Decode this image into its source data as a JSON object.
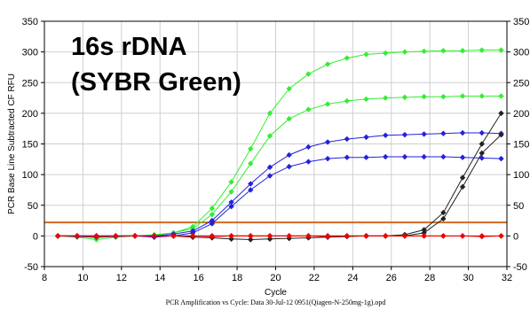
{
  "chart_data": {
    "type": "line",
    "title_lines": [
      "16s rDNA",
      "(SYBR Green)"
    ],
    "xlabel": "Cycle",
    "ylabel": "PCR Base Line Subtracted CF RFU",
    "footer": "PCR Amplification vs Cycle: Data 30-Jul-12 0951(Qiagen-N-250mg-1g).opd",
    "xlim": [
      8,
      32
    ],
    "ylim": [
      -50,
      350
    ],
    "x_ticks": [
      "8",
      "10",
      "12",
      "14",
      "16",
      "18",
      "20",
      "22",
      "24",
      "26",
      "28",
      "30",
      "32"
    ],
    "y_ticks": [
      "-50",
      "0",
      "50",
      "100",
      "150",
      "200",
      "250",
      "300",
      "350"
    ],
    "grid": true,
    "legend": "none",
    "threshold": {
      "y": 22,
      "color": "#d2691e"
    },
    "series": [
      {
        "color": "#33ee33",
        "x": [
          8.7,
          9.7,
          10.7,
          11.7,
          12.7,
          13.7,
          14.7,
          15.7,
          16.7,
          17.7,
          18.7,
          19.7,
          20.7,
          21.7,
          22.7,
          23.7,
          24.7,
          25.7,
          26.7,
          27.7,
          28.7,
          29.7,
          30.7,
          31.7
        ],
        "y": [
          0,
          0,
          -3,
          0,
          0,
          2,
          5,
          15,
          45,
          88,
          142,
          200,
          240,
          264,
          280,
          290,
          296,
          298,
          300,
          301,
          302,
          302,
          303,
          303
        ]
      },
      {
        "color": "#33ee33",
        "x": [
          8.7,
          9.7,
          10.7,
          11.7,
          12.7,
          13.7,
          14.7,
          15.7,
          16.7,
          17.7,
          18.7,
          19.7,
          20.7,
          21.7,
          22.7,
          23.7,
          24.7,
          25.7,
          26.7,
          27.7,
          28.7,
          29.7,
          30.7,
          31.7
        ],
        "y": [
          0,
          -2,
          -6,
          -2,
          0,
          1,
          5,
          12,
          35,
          72,
          118,
          163,
          191,
          206,
          215,
          220,
          223,
          225,
          226,
          227,
          227,
          228,
          228,
          228
        ]
      },
      {
        "color": "#2222dd",
        "x": [
          8.7,
          9.7,
          10.7,
          11.7,
          12.7,
          13.7,
          14.7,
          15.7,
          16.7,
          17.7,
          18.7,
          19.7,
          20.7,
          21.7,
          22.7,
          23.7,
          24.7,
          25.7,
          26.7,
          27.7,
          28.7,
          29.7,
          30.7,
          31.7
        ],
        "y": [
          0,
          0,
          0,
          0,
          0,
          0,
          3,
          8,
          25,
          55,
          85,
          112,
          132,
          145,
          153,
          158,
          161,
          164,
          165,
          166,
          167,
          168,
          168,
          167
        ]
      },
      {
        "color": "#2222dd",
        "x": [
          8.7,
          9.7,
          10.7,
          11.7,
          12.7,
          13.7,
          14.7,
          15.7,
          16.7,
          17.7,
          18.7,
          19.7,
          20.7,
          21.7,
          22.7,
          23.7,
          24.7,
          25.7,
          26.7,
          27.7,
          28.7,
          29.7,
          30.7,
          31.7
        ],
        "y": [
          0,
          -1,
          -2,
          -1,
          0,
          -2,
          0,
          5,
          20,
          48,
          75,
          98,
          113,
          121,
          126,
          128,
          128,
          129,
          129,
          129,
          129,
          128,
          127,
          126
        ]
      },
      {
        "color": "#222222",
        "x": [
          8.7,
          9.7,
          10.7,
          11.7,
          12.7,
          13.7,
          14.7,
          15.7,
          16.7,
          17.7,
          18.7,
          19.7,
          20.7,
          21.7,
          22.7,
          23.7,
          24.7,
          25.7,
          26.7,
          27.7,
          28.7,
          29.7,
          30.7,
          31.7
        ],
        "y": [
          0,
          0,
          0,
          0,
          0,
          0,
          0,
          0,
          0,
          0,
          0,
          0,
          0,
          0,
          0,
          0,
          0,
          0,
          2,
          10,
          38,
          95,
          150,
          200
        ]
      },
      {
        "color": "#222222",
        "x": [
          8.7,
          9.7,
          10.7,
          11.7,
          12.7,
          13.7,
          14.7,
          15.7,
          16.7,
          17.7,
          18.7,
          19.7,
          20.7,
          21.7,
          22.7,
          23.7,
          24.7,
          25.7,
          26.7,
          27.7,
          28.7,
          29.7,
          30.7,
          31.7
        ],
        "y": [
          0,
          0,
          0,
          0,
          0,
          0,
          0,
          -2,
          -3,
          -5,
          -6,
          -5,
          -4,
          -3,
          -2,
          -1,
          0,
          0,
          0,
          5,
          28,
          80,
          135,
          165
        ]
      },
      {
        "color": "#ee0000",
        "x": [
          8.7,
          9.7,
          10.7,
          11.7,
          12.7,
          13.7,
          14.7,
          15.7,
          16.7,
          17.7,
          18.7,
          19.7,
          20.7,
          21.7,
          22.7,
          23.7,
          24.7,
          25.7,
          26.7,
          27.7,
          28.7,
          29.7,
          30.7,
          31.7
        ],
        "y": [
          0,
          0,
          0,
          0,
          0,
          0,
          0,
          0,
          0,
          0,
          0,
          0,
          0,
          0,
          0,
          0,
          0,
          0,
          0,
          0,
          0,
          0,
          0,
          0
        ]
      },
      {
        "color": "#ee0000",
        "x": [
          8.7,
          9.7,
          10.7,
          11.7,
          12.7,
          13.7,
          14.7,
          15.7,
          16.7,
          17.7,
          18.7,
          19.7,
          20.7,
          21.7,
          22.7,
          23.7,
          24.7,
          25.7,
          26.7,
          27.7,
          28.7,
          29.7,
          30.7,
          31.7
        ],
        "y": [
          0,
          0,
          -1,
          0,
          0,
          0,
          0,
          0,
          -1,
          0,
          0,
          0,
          0,
          0,
          -1,
          0,
          0,
          0,
          0,
          0,
          0,
          0,
          -1,
          0
        ]
      }
    ]
  }
}
